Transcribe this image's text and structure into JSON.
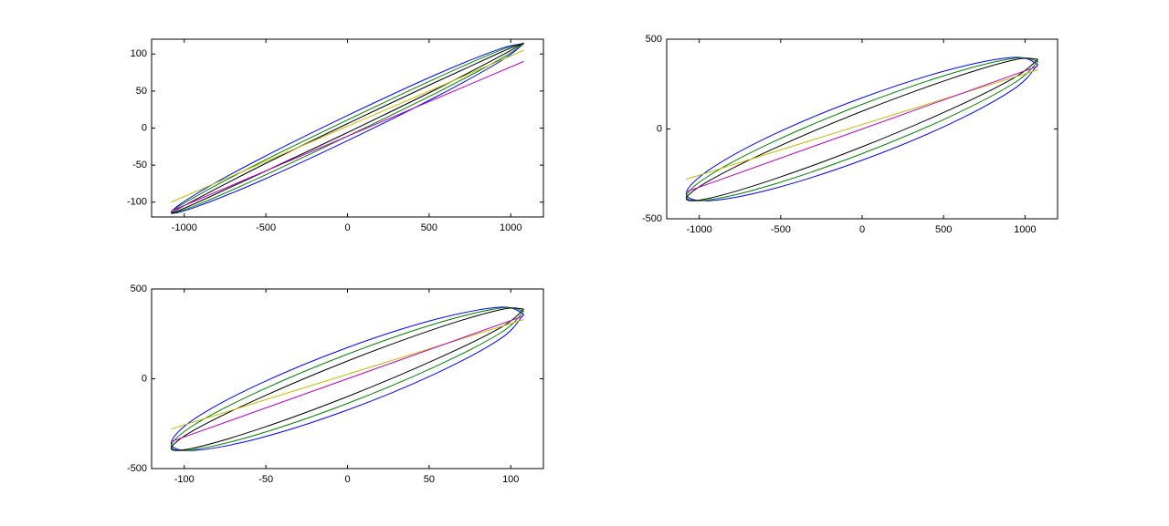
{
  "chart_data": [
    {
      "type": "line",
      "xlim": [
        -1200,
        1200
      ],
      "ylim": [
        -120,
        120
      ],
      "xticks": [
        -1000,
        -500,
        0,
        500,
        1000
      ],
      "yticks": [
        -100,
        -50,
        0,
        50,
        100
      ],
      "series": [
        {
          "color": "#0000ff",
          "x": [
            1080,
            935,
            540,
            0,
            -540,
            -935,
            -1080,
            -935,
            -540,
            0,
            540,
            935,
            1080
          ],
          "values": [
            114,
            107,
            72,
            17,
            -42,
            -90,
            -114,
            -107,
            -72,
            -17,
            42,
            90,
            114
          ]
        },
        {
          "color": "#008000",
          "x": [
            1080,
            935,
            540,
            0,
            -540,
            -935,
            -1080,
            -935,
            -540,
            0,
            540,
            935,
            1080
          ],
          "values": [
            114,
            105,
            67,
            11,
            -47,
            -93,
            -114,
            -105,
            -67,
            -11,
            47,
            93,
            114
          ]
        },
        {
          "color": "#000000",
          "x": [
            1080,
            935,
            540,
            0,
            -540,
            -935,
            -1080,
            -935,
            -540,
            0,
            540,
            935,
            1080
          ],
          "values": [
            115,
            102,
            62,
            6,
            -52,
            -97,
            -115,
            -102,
            -62,
            -6,
            52,
            97,
            115
          ]
        },
        {
          "color": "#bfbf00",
          "x": [
            -1080,
            1080
          ],
          "values": [
            -100,
            105
          ]
        },
        {
          "color": "#bf00bf",
          "x": [
            -1080,
            1080
          ],
          "values": [
            -112,
            90
          ]
        }
      ]
    },
    {
      "type": "line",
      "xlim": [
        -1200,
        1200
      ],
      "ylim": [
        -500,
        500
      ],
      "xticks": [
        -1000,
        -500,
        0,
        500,
        1000
      ],
      "yticks": [
        -500,
        0,
        500
      ],
      "series": [
        {
          "color": "#0000ff",
          "x": [
            1080,
            935,
            540,
            0,
            -540,
            -935,
            -1080,
            -935,
            -540,
            0,
            540,
            935,
            1080
          ],
          "values": [
            360,
            399,
            331,
            174,
            -29,
            -225,
            -360,
            -399,
            -331,
            -174,
            29,
            225,
            360
          ]
        },
        {
          "color": "#008000",
          "x": [
            1080,
            935,
            540,
            0,
            -540,
            -935,
            -1080,
            -935,
            -540,
            0,
            540,
            935,
            1080
          ],
          "values": [
            376,
            394,
            307,
            137,
            -69,
            -257,
            -376,
            -394,
            -307,
            -137,
            69,
            257,
            376
          ]
        },
        {
          "color": "#000000",
          "x": [
            1080,
            935,
            540,
            0,
            -540,
            -935,
            -1080,
            -935,
            -540,
            0,
            540,
            935,
            1080
          ],
          "values": [
            388,
            385,
            279,
            99,
            -108,
            -286,
            -388,
            -385,
            -279,
            -99,
            108,
            286,
            388
          ]
        },
        {
          "color": "#bfbf00",
          "x": [
            -1080,
            1080
          ],
          "values": [
            -280,
            330
          ]
        },
        {
          "color": "#bf00bf",
          "x": [
            -1080,
            1080
          ],
          "values": [
            -350,
            350
          ]
        }
      ]
    },
    {
      "type": "line",
      "xlim": [
        -120,
        120
      ],
      "ylim": [
        -500,
        500
      ],
      "xticks": [
        -100,
        -50,
        0,
        50,
        100
      ],
      "yticks": [
        -500,
        0,
        500
      ],
      "series": [
        {
          "color": "#0000ff",
          "x": [
            108,
            94,
            54,
            0,
            -54,
            -94,
            -108,
            -94,
            -54,
            0,
            54,
            94,
            108
          ],
          "values": [
            360,
            399,
            331,
            174,
            -29,
            -225,
            -360,
            -399,
            -331,
            -174,
            29,
            225,
            360
          ]
        },
        {
          "color": "#008000",
          "x": [
            108,
            94,
            54,
            0,
            -54,
            -94,
            -108,
            -94,
            -54,
            0,
            54,
            94,
            108
          ],
          "values": [
            376,
            394,
            307,
            137,
            -69,
            -257,
            -376,
            -394,
            -307,
            -137,
            69,
            257,
            376
          ]
        },
        {
          "color": "#000000",
          "x": [
            108,
            94,
            54,
            0,
            -54,
            -94,
            -108,
            -94,
            -54,
            0,
            54,
            94,
            108
          ],
          "values": [
            388,
            385,
            279,
            99,
            -108,
            -286,
            -388,
            -385,
            -279,
            -99,
            108,
            286,
            388
          ]
        },
        {
          "color": "#bfbf00",
          "x": [
            -108,
            108
          ],
          "values": [
            -280,
            330
          ]
        },
        {
          "color": "#bf00bf",
          "x": [
            -108,
            108
          ],
          "values": [
            -350,
            350
          ]
        }
      ]
    }
  ]
}
